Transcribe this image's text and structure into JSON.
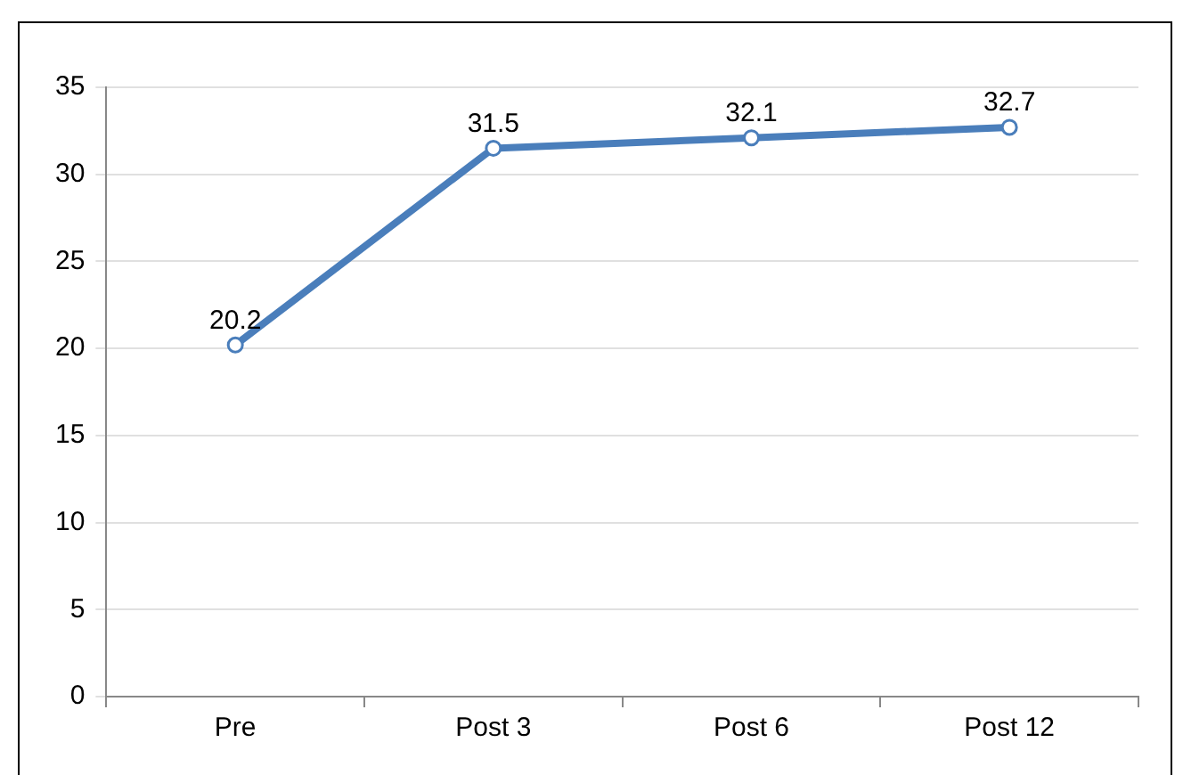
{
  "chart_data": {
    "type": "line",
    "categories": [
      "Pre",
      "Post 3",
      "Post 6",
      "Post 12"
    ],
    "series": [
      {
        "color": "#4a7ebb",
        "values": [
          20.2,
          31.5,
          32.1,
          32.7
        ]
      }
    ],
    "ylim": [
      0,
      35
    ],
    "yticks": [
      0,
      5,
      10,
      15,
      20,
      25,
      30,
      35
    ],
    "grid": "y",
    "legend": false,
    "marker": "circle",
    "line_style": "solid",
    "data_labels": true
  }
}
